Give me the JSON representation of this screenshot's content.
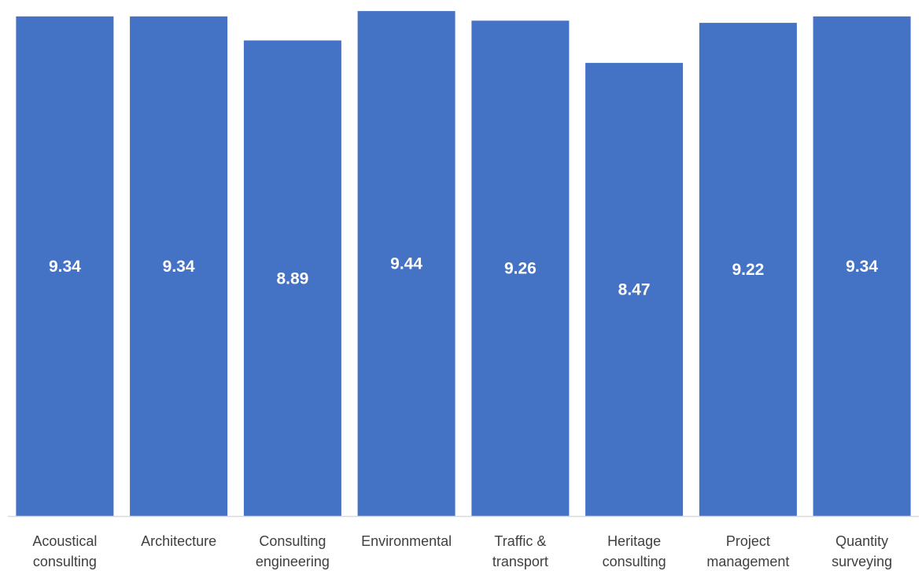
{
  "chart_data": {
    "type": "bar",
    "categories": [
      [
        "Acoustical",
        "consulting"
      ],
      [
        "Architecture"
      ],
      [
        "Consulting",
        "engineering"
      ],
      [
        "Environmental"
      ],
      [
        "Traffic &",
        "transport"
      ],
      [
        "Heritage",
        "consulting"
      ],
      [
        "Project",
        "management"
      ],
      [
        "Quantity",
        "surveying"
      ]
    ],
    "values": [
      9.34,
      9.34,
      8.89,
      9.44,
      9.26,
      8.47,
      9.22,
      9.34
    ],
    "value_labels": [
      "9.34",
      "9.34",
      "8.89",
      "9.44",
      "9.26",
      "8.47",
      "9.22",
      "9.34"
    ],
    "ylim": [
      0,
      9.5
    ],
    "grid": false,
    "legend": "none",
    "bar_color": "#4472C4",
    "label_color": "#ffffff",
    "axis_color": "#d9d9d9",
    "category_text_color": "#404040"
  }
}
